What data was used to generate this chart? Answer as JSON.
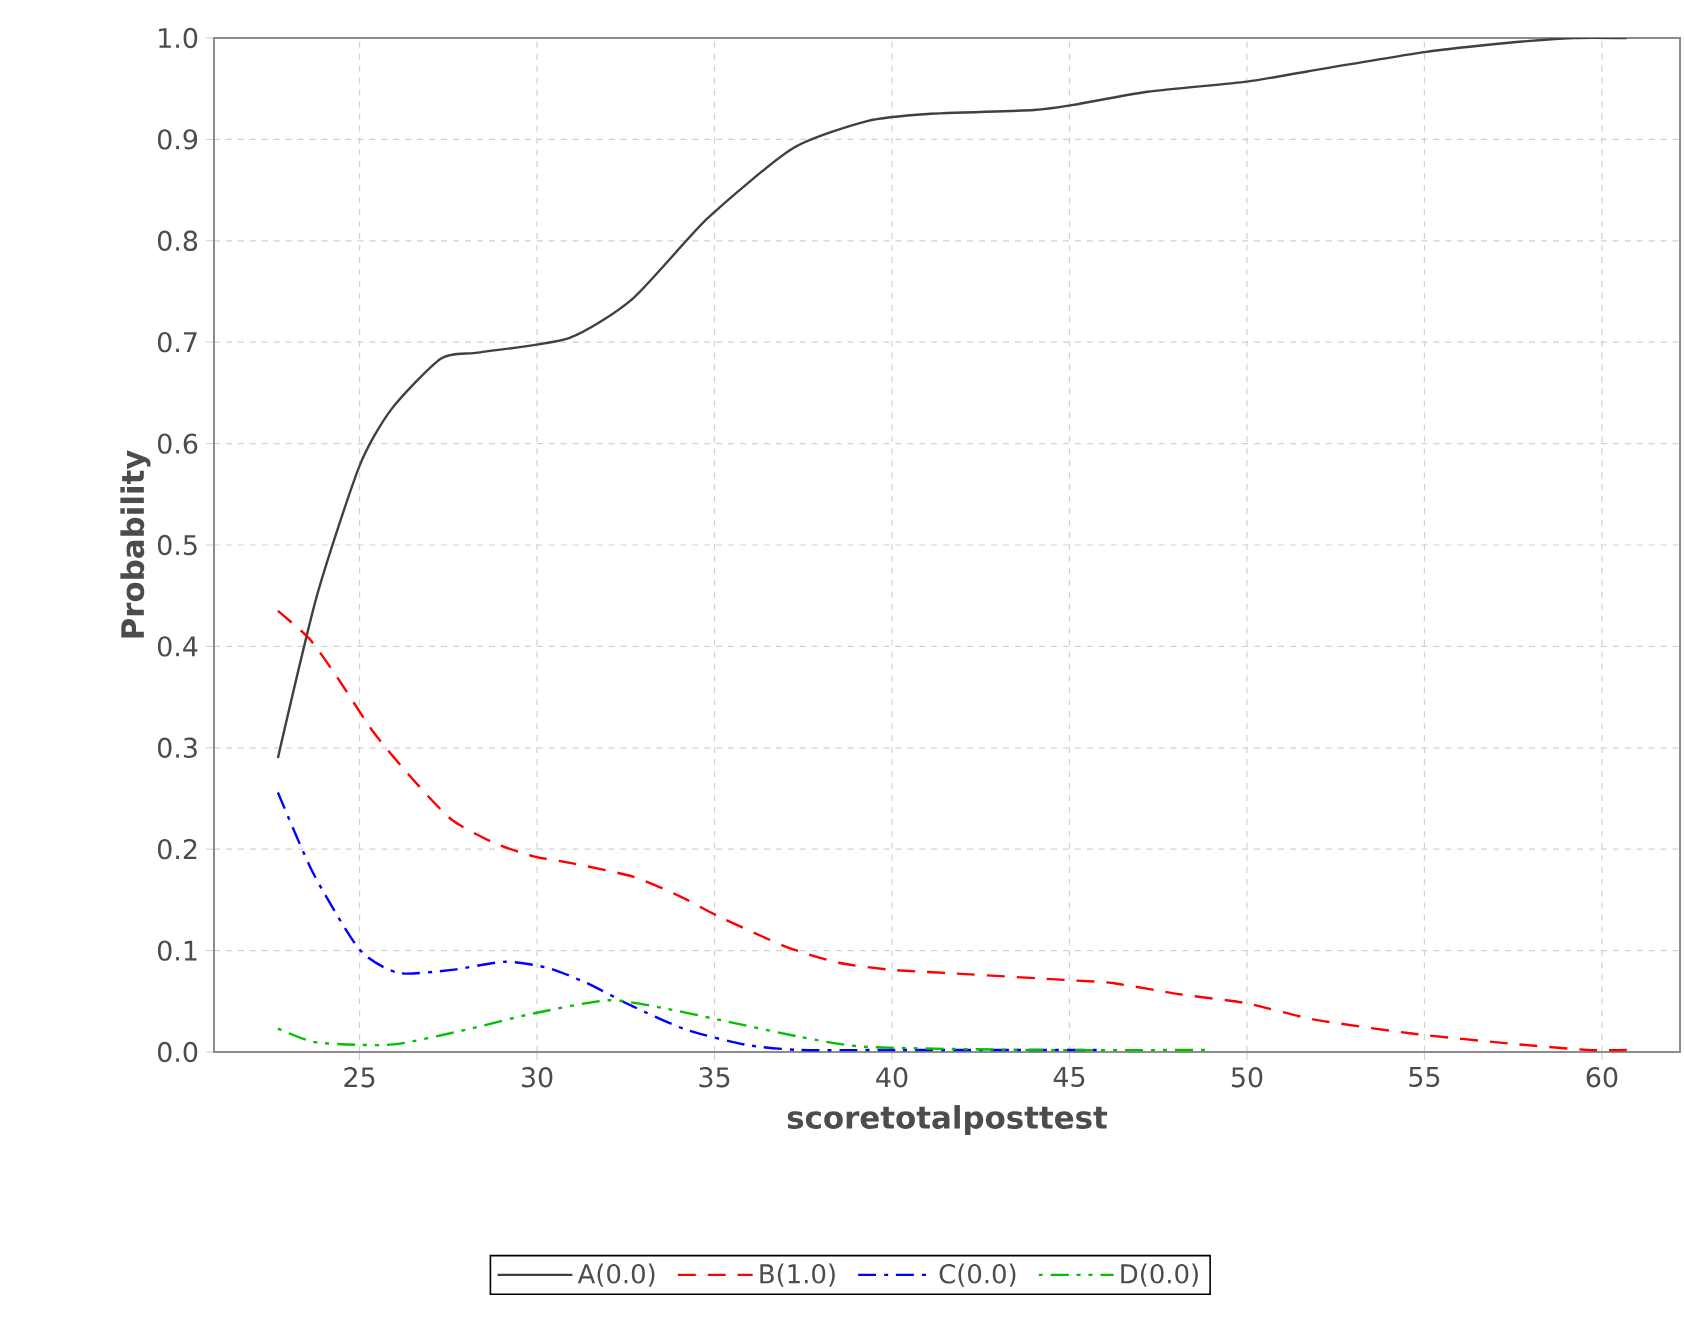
{
  "chart_data": {
    "type": "line",
    "xlabel": "scoretotalposttest",
    "ylabel": "Probability",
    "xlim": [
      20.9,
      62.2
    ],
    "ylim": [
      0,
      1
    ],
    "xticks": [
      25,
      30,
      35,
      40,
      45,
      50,
      55,
      60
    ],
    "yticks": [
      {
        "value": 0,
        "label": "0.0"
      },
      {
        "value": 0.1,
        "label": "0.1"
      },
      {
        "value": 0.2,
        "label": "0.2"
      },
      {
        "value": 0.3,
        "label": "0.3"
      },
      {
        "value": 0.4,
        "label": "0.4"
      },
      {
        "value": 0.5,
        "label": "0.5"
      },
      {
        "value": 0.6,
        "label": "0.6"
      },
      {
        "value": 0.7,
        "label": "0.7"
      },
      {
        "value": 0.8,
        "label": "0.8"
      },
      {
        "value": 0.9,
        "label": "0.9"
      },
      {
        "value": 1,
        "label": "1.0"
      }
    ],
    "grid": true,
    "legend": "bottom",
    "marker": "none",
    "series": [
      {
        "name": "A(0.0)",
        "color": "#404040",
        "line_style": "solid",
        "x": [
          22.7,
          23.8,
          25.0,
          25.9,
          27.3,
          28.4,
          30.9,
          32.7,
          34.8,
          37.2,
          39.3,
          41.0,
          44.0,
          45.1,
          47.2,
          50.0,
          51.7,
          55.0,
          57.3,
          59.2,
          60.7
        ],
        "values": [
          0.29,
          0.45,
          0.578,
          0.634,
          0.684,
          0.69,
          0.704,
          0.743,
          0.822,
          0.891,
          0.918,
          0.925,
          0.929,
          0.934,
          0.947,
          0.957,
          0.967,
          0.986,
          0.995,
          1.0,
          1.0
        ]
      },
      {
        "name": "B(1.0)",
        "color": "#ff0000",
        "line_style": "dashed",
        "x": [
          22.7,
          23.6,
          24.4,
          25.4,
          26.5,
          27.6,
          28.8,
          29.9,
          31.0,
          32.7,
          34.0,
          35.1,
          37.0,
          38.5,
          40.0,
          41.5,
          44.9,
          46.2,
          48.1,
          50.0,
          51.9,
          54.7,
          57.5,
          59.6,
          60.7
        ],
        "values": [
          0.435,
          0.407,
          0.368,
          0.315,
          0.269,
          0.229,
          0.206,
          0.193,
          0.186,
          0.173,
          0.154,
          0.134,
          0.104,
          0.088,
          0.081,
          0.078,
          0.071,
          0.068,
          0.057,
          0.048,
          0.032,
          0.018,
          0.008,
          0.002,
          0.002
        ]
      },
      {
        "name": "C(0.0)",
        "color": "#0000ff",
        "line_style": "dashdot",
        "x": [
          22.7,
          23.7,
          25.0,
          26.1,
          27.6,
          29.1,
          30.3,
          31.4,
          32.7,
          34.2,
          35.9,
          37.4,
          40.0,
          45.9
        ],
        "values": [
          0.256,
          0.176,
          0.101,
          0.078,
          0.081,
          0.089,
          0.083,
          0.068,
          0.045,
          0.022,
          0.007,
          0.002,
          0.002,
          0.002
        ]
      },
      {
        "name": "D(0.0)",
        "color": "#00c000",
        "line_style": "dashdotdot",
        "x": [
          22.7,
          23.7,
          25.0,
          26.1,
          28.0,
          29.9,
          32.0,
          33.6,
          35.1,
          37.4,
          39.3,
          44.0,
          49.0
        ],
        "values": [
          0.023,
          0.01,
          0.007,
          0.008,
          0.022,
          0.038,
          0.051,
          0.043,
          0.032,
          0.015,
          0.005,
          0.002,
          0.002
        ]
      }
    ]
  }
}
